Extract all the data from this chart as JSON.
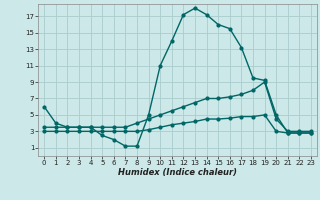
{
  "xlabel": "Humidex (Indice chaleur)",
  "bg_color": "#cce8e8",
  "grid_color": "#aacccc",
  "line_color": "#006666",
  "xlim": [
    -0.5,
    23.5
  ],
  "ylim": [
    0,
    18.5
  ],
  "xticks": [
    0,
    1,
    2,
    3,
    4,
    5,
    6,
    7,
    8,
    9,
    10,
    11,
    12,
    13,
    14,
    15,
    16,
    17,
    18,
    19,
    20,
    21,
    22,
    23
  ],
  "yticks": [
    1,
    3,
    5,
    7,
    9,
    11,
    13,
    15,
    17
  ],
  "line1_x": [
    0,
    1,
    2,
    3,
    4,
    5,
    6,
    7,
    8,
    9,
    10,
    11,
    12,
    13,
    14,
    15,
    16,
    17,
    18,
    19,
    20,
    21,
    22,
    23
  ],
  "line1_y": [
    6,
    4,
    3.5,
    3.5,
    3.5,
    2.5,
    2,
    1.2,
    1.2,
    5,
    11,
    14,
    17.2,
    18,
    17.2,
    16,
    15.5,
    13.2,
    9.5,
    9.2,
    5,
    2.8,
    2.8,
    2.8
  ],
  "line2_x": [
    0,
    1,
    2,
    3,
    4,
    5,
    6,
    7,
    8,
    9,
    10,
    11,
    12,
    13,
    14,
    15,
    16,
    17,
    18,
    19,
    20,
    21,
    22,
    23
  ],
  "line2_y": [
    3.5,
    3.5,
    3.5,
    3.5,
    3.5,
    3.5,
    3.5,
    3.5,
    4,
    4.5,
    5,
    5.5,
    6,
    6.5,
    7,
    7,
    7.2,
    7.5,
    8,
    9,
    4.5,
    3,
    3,
    3
  ],
  "line3_x": [
    0,
    1,
    2,
    3,
    4,
    5,
    6,
    7,
    8,
    9,
    10,
    11,
    12,
    13,
    14,
    15,
    16,
    17,
    18,
    19,
    20,
    21,
    22,
    23
  ],
  "line3_y": [
    3,
    3,
    3,
    3,
    3,
    3,
    3,
    3,
    3,
    3.2,
    3.5,
    3.8,
    4,
    4.2,
    4.5,
    4.5,
    4.6,
    4.8,
    4.8,
    5,
    3,
    2.8,
    2.8,
    2.8
  ],
  "tick_fontsize": 5,
  "xlabel_fontsize": 6,
  "marker_size": 2,
  "linewidth": 1.0
}
